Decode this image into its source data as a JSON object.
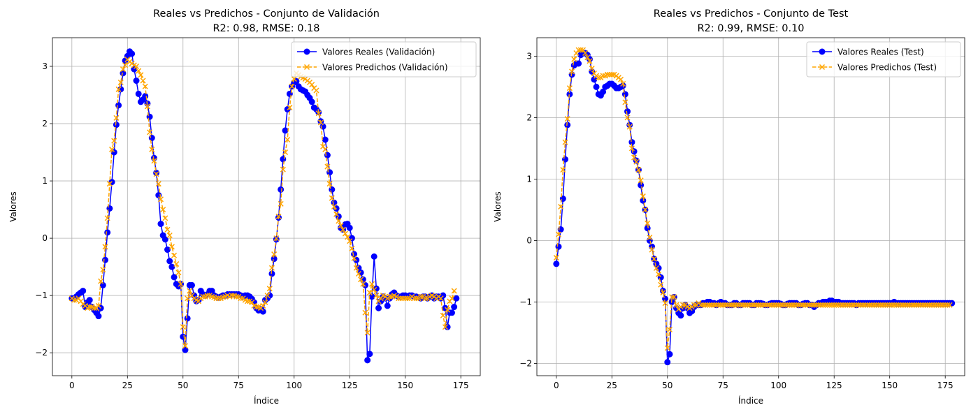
{
  "chart_data": [
    {
      "type": "line",
      "title_line1": "Reales vs Predichos - Conjunto de Validación",
      "title_line2": "R2: 0.98, RMSE: 0.18",
      "xlabel": "Índice",
      "ylabel": "Valores",
      "xlim": [
        -8.75,
        183.75
      ],
      "ylim": [
        -2.4,
        3.5
      ],
      "xticks": [
        0,
        25,
        50,
        75,
        100,
        125,
        150,
        175
      ],
      "yticks": [
        -2,
        -1,
        0,
        1,
        2,
        3
      ],
      "xtick_labels": [
        "0",
        "25",
        "50",
        "75",
        "100",
        "125",
        "150",
        "175"
      ],
      "ytick_labels": [
        "−2",
        "−1",
        "0",
        "1",
        "2",
        "3"
      ],
      "grid": true,
      "legend_position": "top-right",
      "series": [
        {
          "name": "Valores Reales (Validación)",
          "color": "#0000ff",
          "marker": "circle",
          "linestyle": "solid",
          "values": [
            -1.05,
            -1.05,
            -1.02,
            -0.98,
            -0.95,
            -0.92,
            -1.2,
            -1.12,
            -1.08,
            -1.2,
            -1.25,
            -1.3,
            -1.36,
            -1.22,
            -0.82,
            -0.38,
            0.1,
            0.52,
            0.98,
            1.5,
            1.98,
            2.32,
            2.6,
            2.88,
            3.1,
            3.18,
            3.26,
            3.22,
            2.95,
            2.75,
            2.52,
            2.38,
            2.42,
            2.48,
            2.35,
            2.12,
            1.75,
            1.4,
            1.14,
            0.75,
            0.25,
            0.05,
            -0.02,
            -0.2,
            -0.4,
            -0.5,
            -0.68,
            -0.8,
            -0.84,
            -0.8,
            -1.72,
            -1.95,
            -1.4,
            -0.82,
            -0.82,
            -1.0,
            -1.1,
            -1.08,
            -0.92,
            -0.98,
            -1.0,
            -0.98,
            -0.92,
            -0.92,
            -1.0,
            -1.02,
            -1.04,
            -1.02,
            -1.0,
            -1.0,
            -0.98,
            -0.98,
            -0.98,
            -0.98,
            -0.98,
            -0.98,
            -1.0,
            -1.02,
            -1.0,
            -1.0,
            -1.02,
            -1.06,
            -1.12,
            -1.22,
            -1.26,
            -1.24,
            -1.28,
            -1.08,
            -1.05,
            -1.0,
            -0.62,
            -0.36,
            -0.02,
            0.36,
            0.85,
            1.38,
            1.88,
            2.25,
            2.52,
            2.65,
            2.72,
            2.74,
            2.65,
            2.6,
            2.58,
            2.56,
            2.5,
            2.45,
            2.38,
            2.28,
            2.25,
            2.2,
            2.04,
            1.95,
            1.72,
            1.45,
            1.15,
            0.85,
            0.62,
            0.52,
            0.38,
            0.18,
            0.15,
            0.24,
            0.25,
            0.18,
            0.0,
            -0.28,
            -0.38,
            -0.52,
            -0.6,
            -0.72,
            -0.82,
            -2.13,
            -2.02,
            -1.02,
            -0.32,
            -0.88,
            -1.22,
            -1.1,
            -1.02,
            -1.05,
            -1.18,
            -1.05,
            -0.98,
            -0.95,
            -1.0,
            -1.02,
            -1.02,
            -1.0,
            -1.0,
            -1.02,
            -1.0,
            -1.0,
            -1.02,
            -1.02,
            -1.03,
            -1.05,
            -1.02,
            -1.02,
            -1.05,
            -1.02,
            -1.0,
            -1.05,
            -1.02,
            -1.02,
            -1.05,
            -1.0,
            -1.22,
            -1.55,
            -1.3,
            -1.3,
            -1.2,
            -1.05
          ]
        },
        {
          "name": "Valores Predichos (Validación)",
          "color": "#ffa500",
          "marker": "x",
          "linestyle": "dashed",
          "values": [
            -1.05,
            -1.08,
            -1.08,
            -1.05,
            -1.1,
            -1.15,
            -1.18,
            -1.22,
            -1.2,
            -1.2,
            -1.22,
            -1.22,
            -1.18,
            -0.75,
            -0.55,
            -0.15,
            0.35,
            0.95,
            1.55,
            1.7,
            2.1,
            2.6,
            2.72,
            2.95,
            3.02,
            3.12,
            3.08,
            3.05,
            3.02,
            3.0,
            2.92,
            2.85,
            2.75,
            2.65,
            2.3,
            1.85,
            1.55,
            1.35,
            1.12,
            0.95,
            0.68,
            0.5,
            0.35,
            0.15,
            0.05,
            -0.15,
            -0.3,
            -0.45,
            -0.6,
            -0.8,
            -1.55,
            -1.88,
            -1.05,
            -0.92,
            -1.0,
            -1.05,
            -1.08,
            -1.1,
            -1.05,
            -1.02,
            -1.02,
            -1.0,
            -1.0,
            -1.02,
            -1.03,
            -1.05,
            -1.05,
            -1.05,
            -1.03,
            -1.02,
            -1.0,
            -1.02,
            -1.0,
            -1.0,
            -1.02,
            -1.02,
            -1.05,
            -1.05,
            -1.08,
            -1.1,
            -1.1,
            -1.12,
            -1.18,
            -1.2,
            -1.2,
            -1.22,
            -1.18,
            -1.12,
            -1.0,
            -0.88,
            -0.52,
            -0.28,
            0.0,
            0.38,
            0.6,
            1.2,
            1.5,
            1.72,
            2.28,
            2.65,
            2.78,
            2.88,
            2.85,
            2.82,
            2.8,
            2.78,
            2.75,
            2.72,
            2.68,
            2.62,
            2.58,
            2.18,
            2.02,
            1.6,
            1.55,
            1.25,
            0.95,
            0.7,
            0.55,
            0.42,
            0.3,
            0.22,
            0.15,
            0.08,
            0.02,
            -0.05,
            -0.18,
            -0.35,
            -0.52,
            -0.62,
            -0.72,
            -0.8,
            -1.3,
            -1.65,
            -0.95,
            -0.8,
            -0.9,
            -1.0,
            -1.1,
            -1.05,
            -1.0,
            -1.02,
            -1.05,
            -1.02,
            -1.02,
            -1.0,
            -1.02,
            -1.05,
            -1.05,
            -1.05,
            -1.05,
            -1.05,
            -1.05,
            -1.02,
            -1.05,
            -1.05,
            -1.05,
            -1.02,
            -1.02,
            -1.05,
            -1.05,
            -1.02,
            -1.0,
            -1.02,
            -1.05,
            -1.02,
            -1.05,
            -1.35,
            -1.55,
            -1.25,
            -1.1,
            -1.05,
            -0.92
          ]
        }
      ]
    },
    {
      "type": "line",
      "title_line1": "Reales vs Predichos - Conjunto de Test",
      "title_line2": "R2: 0.99, RMSE: 0.10",
      "xlabel": "Índice",
      "ylabel": "Valores",
      "xlim": [
        -8.75,
        183.75
      ],
      "ylim": [
        -2.2,
        3.3
      ],
      "xticks": [
        0,
        25,
        50,
        75,
        100,
        125,
        150,
        175
      ],
      "yticks": [
        -2,
        -1,
        0,
        1,
        2,
        3
      ],
      "xtick_labels": [
        "0",
        "25",
        "50",
        "75",
        "100",
        "125",
        "150",
        "175"
      ],
      "ytick_labels": [
        "−2",
        "−1",
        "0",
        "1",
        "2",
        "3"
      ],
      "grid": true,
      "legend_position": "top-right",
      "series": [
        {
          "name": "Valores Reales (Test)",
          "color": "#0000ff",
          "marker": "circle",
          "linestyle": "solid",
          "values": [
            -0.38,
            -0.1,
            0.18,
            0.68,
            1.32,
            1.88,
            2.38,
            2.7,
            2.85,
            2.88,
            2.88,
            3.02,
            3.05,
            3.05,
            3.02,
            2.95,
            2.75,
            2.62,
            2.5,
            2.38,
            2.36,
            2.42,
            2.5,
            2.52,
            2.55,
            2.55,
            2.52,
            2.48,
            2.48,
            2.5,
            2.52,
            2.38,
            2.1,
            1.88,
            1.6,
            1.45,
            1.3,
            1.15,
            0.9,
            0.65,
            0.5,
            0.2,
            0.0,
            -0.1,
            -0.3,
            -0.38,
            -0.45,
            -0.6,
            -0.82,
            -0.95,
            -1.98,
            -1.85,
            -1.0,
            -0.92,
            -1.1,
            -1.18,
            -1.22,
            -1.1,
            -1.05,
            -1.1,
            -1.18,
            -1.15,
            -1.08,
            -1.05,
            -1.05,
            -1.05,
            -1.02,
            -1.02,
            -1.0,
            -1.0,
            -1.02,
            -1.02,
            -1.05,
            -1.02,
            -1.0,
            -1.02,
            -1.02,
            -1.05,
            -1.05,
            -1.05,
            -1.02,
            -1.02,
            -1.05,
            -1.05,
            -1.02,
            -1.02,
            -1.02,
            -1.02,
            -1.05,
            -1.05,
            -1.02,
            -1.02,
            -1.02,
            -1.03,
            -1.05,
            -1.05,
            -1.03,
            -1.02,
            -1.02,
            -1.02,
            -1.02,
            -1.03,
            -1.05,
            -1.05,
            -1.03,
            -1.02,
            -1.02,
            -1.02,
            -1.02,
            -1.05,
            -1.05,
            -1.03,
            -1.02,
            -1.02,
            -1.05,
            -1.05,
            -1.08,
            -1.05,
            -1.02,
            -1.02,
            -1.0,
            -1.0,
            -1.0,
            -0.98,
            -0.98,
            -1.0,
            -1.0,
            -1.0,
            -1.02,
            -1.02,
            -1.02,
            -1.02,
            -1.02,
            -1.02,
            -1.02,
            -1.05,
            -1.02,
            -1.02,
            -1.02,
            -1.02,
            -1.02,
            -1.02,
            -1.02,
            -1.02,
            -1.02,
            -1.02,
            -1.02,
            -1.02,
            -1.02,
            -1.02,
            -1.02,
            -1.02,
            -1.0,
            -1.02,
            -1.02,
            -1.02,
            -1.02,
            -1.02,
            -1.02,
            -1.02,
            -1.02,
            -1.02,
            -1.02,
            -1.02,
            -1.02,
            -1.02,
            -1.02,
            -1.02,
            -1.02,
            -1.02,
            -1.02,
            -1.02,
            -1.02,
            -1.02,
            -1.02,
            -1.02,
            -1.02,
            -1.02,
            -1.02
          ]
        },
        {
          "name": "Valores Predichos (Test)",
          "color": "#ffa500",
          "marker": "x",
          "linestyle": "dashed",
          "values": [
            -0.28,
            0.1,
            0.55,
            1.15,
            1.6,
            1.98,
            2.48,
            2.75,
            2.95,
            3.05,
            3.1,
            3.1,
            3.1,
            3.05,
            2.98,
            2.92,
            2.8,
            2.72,
            2.68,
            2.65,
            2.65,
            2.68,
            2.68,
            2.7,
            2.7,
            2.7,
            2.7,
            2.68,
            2.65,
            2.62,
            2.55,
            2.25,
            2.0,
            1.85,
            1.5,
            1.35,
            1.28,
            1.15,
            0.98,
            0.72,
            0.5,
            0.28,
            0.05,
            -0.15,
            -0.3,
            -0.45,
            -0.55,
            -0.72,
            -0.85,
            -1.02,
            -1.75,
            -1.45,
            -0.92,
            -0.92,
            -1.05,
            -1.12,
            -1.08,
            -1.05,
            -1.05,
            -1.08,
            -1.1,
            -1.08,
            -1.05,
            -1.05,
            -1.02,
            -1.05,
            -1.05,
            -1.05,
            -1.05,
            -1.05,
            -1.05,
            -1.05,
            -1.05,
            -1.05,
            -1.05,
            -1.05,
            -1.05,
            -1.05,
            -1.05,
            -1.05,
            -1.05,
            -1.05,
            -1.05,
            -1.05,
            -1.05,
            -1.05,
            -1.05,
            -1.05,
            -1.05,
            -1.05,
            -1.05,
            -1.05,
            -1.05,
            -1.05,
            -1.05,
            -1.05,
            -1.05,
            -1.05,
            -1.05,
            -1.05,
            -1.05,
            -1.05,
            -1.05,
            -1.05,
            -1.05,
            -1.05,
            -1.05,
            -1.05,
            -1.05,
            -1.05,
            -1.05,
            -1.05,
            -1.05,
            -1.05,
            -1.05,
            -1.05,
            -1.05,
            -1.05,
            -1.05,
            -1.05,
            -1.05,
            -1.05,
            -1.05,
            -1.05,
            -1.05,
            -1.05,
            -1.05,
            -1.05,
            -1.05,
            -1.05,
            -1.05,
            -1.05,
            -1.05,
            -1.05,
            -1.05,
            -1.05,
            -1.05,
            -1.05,
            -1.05,
            -1.05,
            -1.05,
            -1.05,
            -1.05,
            -1.05,
            -1.05,
            -1.05,
            -1.05,
            -1.05,
            -1.05,
            -1.05,
            -1.05,
            -1.05,
            -1.05,
            -1.05,
            -1.05,
            -1.05,
            -1.05,
            -1.05,
            -1.05,
            -1.05,
            -1.05,
            -1.05,
            -1.05,
            -1.05,
            -1.05,
            -1.05,
            -1.05,
            -1.05,
            -1.05,
            -1.05,
            -1.05,
            -1.05,
            -1.05,
            -1.05,
            -1.05,
            -1.05,
            -1.05,
            -1.05
          ]
        }
      ]
    }
  ]
}
